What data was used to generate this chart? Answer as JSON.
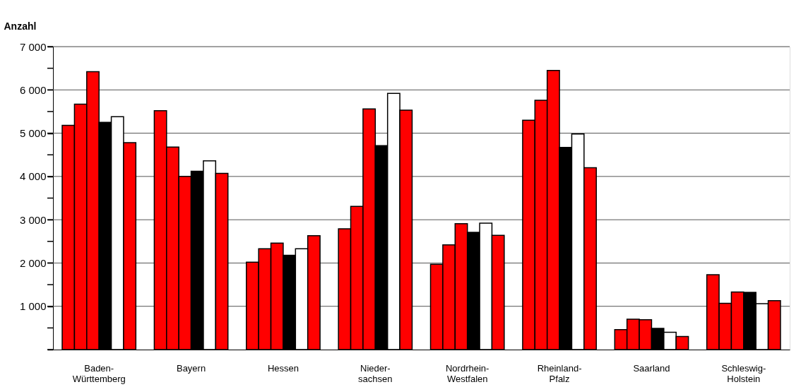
{
  "chart_data": {
    "type": "bar",
    "ylabel": "Anzahl",
    "categories": [
      "Baden-\nWürttemberg",
      "Bayern",
      "Hessen",
      "Nieder-\nsachsen",
      "Nordrhein-\nWestfalen",
      "Rheinland-\nPfalz",
      "Saarland",
      "Schleswig-\nHolstein"
    ],
    "series": [
      {
        "color": "#ff0000",
        "values": [
          5180,
          5520,
          2020,
          2790,
          1970,
          5300,
          460,
          1730
        ]
      },
      {
        "color": "#ff0000",
        "values": [
          5670,
          4680,
          2330,
          3310,
          2420,
          5760,
          700,
          1070
        ]
      },
      {
        "color": "#ff0000",
        "values": [
          6420,
          4000,
          2460,
          5560,
          2910,
          6450,
          690,
          1330
        ]
      },
      {
        "color": "#000000",
        "values": [
          5250,
          4120,
          2180,
          4710,
          2710,
          4670,
          490,
          1320
        ]
      },
      {
        "color": "#ffffff",
        "values": [
          5380,
          4360,
          2330,
          5920,
          2920,
          4980,
          400,
          1060
        ]
      },
      {
        "color": "#ff0000",
        "values": [
          4780,
          4070,
          2630,
          5530,
          2640,
          4200,
          300,
          1130
        ]
      }
    ],
    "ylim": [
      0,
      7000
    ],
    "yticks": [
      {
        "value": 0,
        "label": null
      },
      {
        "value": 500,
        "label": null
      },
      {
        "value": 1000,
        "label": "1 000"
      },
      {
        "value": 1500,
        "label": null
      },
      {
        "value": 2000,
        "label": "2 000"
      },
      {
        "value": 2500,
        "label": null
      },
      {
        "value": 3000,
        "label": "3 000"
      },
      {
        "value": 3500,
        "label": null
      },
      {
        "value": 4000,
        "label": "4 000"
      },
      {
        "value": 4500,
        "label": null
      },
      {
        "value": 5000,
        "label": "5 000"
      },
      {
        "value": 5500,
        "label": null
      },
      {
        "value": 6000,
        "label": "6 000"
      },
      {
        "value": 6500,
        "label": null
      },
      {
        "value": 7000,
        "label": "7 000"
      }
    ],
    "grid": "y",
    "legend": false
  }
}
